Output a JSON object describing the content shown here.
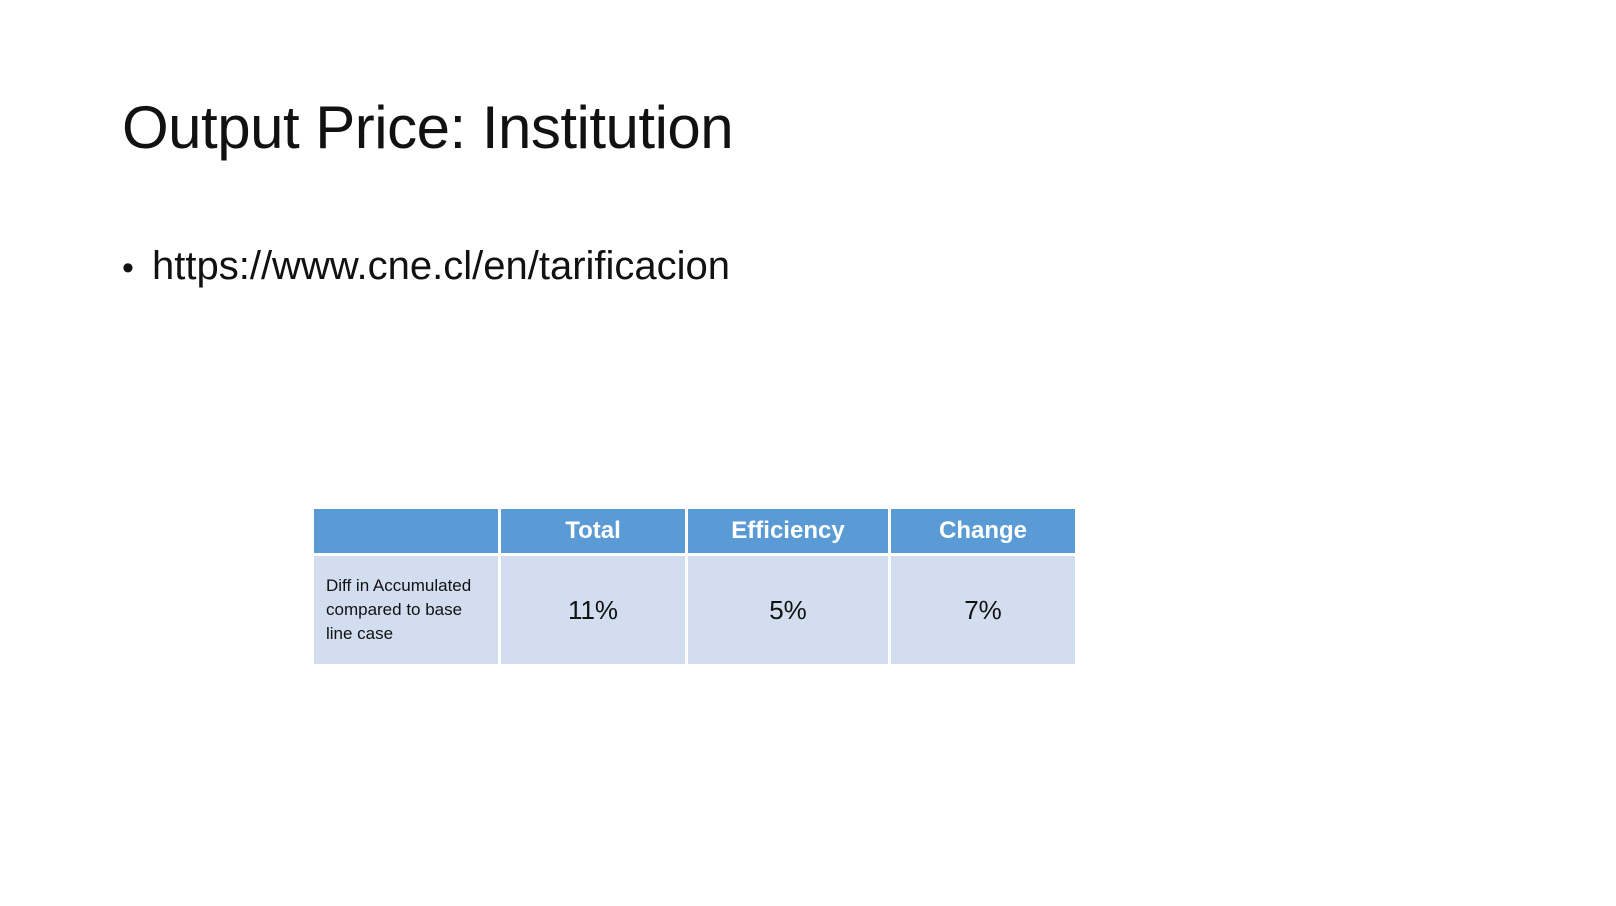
{
  "slide": {
    "title": "Output Price: Institution",
    "bullets": [
      {
        "symbol": "•",
        "text": "https://www.cne.cl/en/tarificacion"
      }
    ]
  },
  "table": {
    "columns": [
      "",
      "Total",
      "Efficiency",
      "Change"
    ],
    "rows": [
      {
        "label": "Diff in Accumulated compared to base line case",
        "values": [
          "11%",
          "5%",
          "7%"
        ]
      }
    ]
  },
  "colors": {
    "header_fill": "#5b9bd5",
    "body_fill": "#d2deef",
    "header_text": "#ffffff"
  }
}
